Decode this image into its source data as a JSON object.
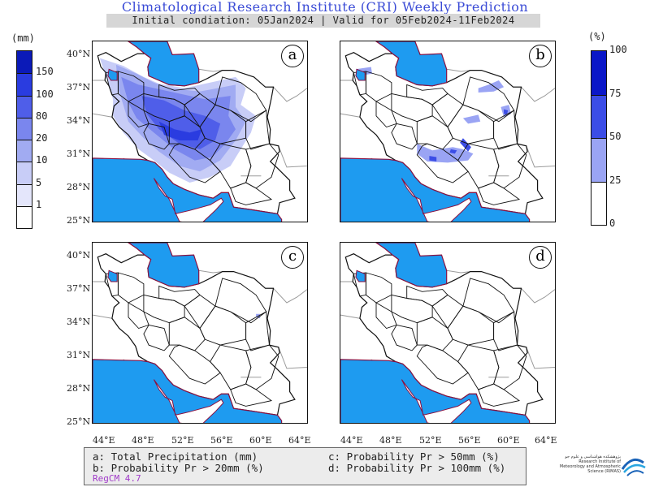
{
  "header": {
    "title": "Climatological Research Institute (CRI) Weekly Prediction",
    "subtitle": "Initial condiation: 05Jan2024 | Valid for 05Feb2024-11Feb2024"
  },
  "colorbar_left": {
    "unit": "(mm)",
    "labels": [
      "1",
      "5",
      "10",
      "20",
      "80",
      "100",
      "150"
    ],
    "colors": [
      "#ffffff",
      "#e4e6fb",
      "#c8cdf7",
      "#a1abf2",
      "#7a86ee",
      "#4f5ee9",
      "#2a3ce0",
      "#0b1ab8"
    ]
  },
  "colorbar_right": {
    "unit": "(%)",
    "labels": [
      "0",
      "25",
      "50",
      "75",
      "100"
    ],
    "colors": [
      "#ffffff",
      "#9aa4f4",
      "#3b4de6",
      "#0a17c8"
    ]
  },
  "panels": [
    {
      "id": "a",
      "label": "a"
    },
    {
      "id": "b",
      "label": "b"
    },
    {
      "id": "c",
      "label": "c"
    },
    {
      "id": "d",
      "label": "d"
    }
  ],
  "axes": {
    "lat_ticks": [
      "40°N",
      "37°N",
      "34°N",
      "31°N",
      "28°N",
      "25°N"
    ],
    "lon_ticks": [
      "44°E",
      "48°E",
      "52°E",
      "56°E",
      "60°E",
      "64°E"
    ]
  },
  "legend": {
    "a": "a: Total Precipitation (mm)",
    "b": "b: Probability Pr > 20mm (%)",
    "c": "c: Probability Pr > 50mm (%)",
    "d": "d: Probability Pr > 100mm (%)",
    "model": "RegCM 4.7"
  },
  "colors": {
    "sea": "#1e9bf0",
    "coast": "#8a1040",
    "title": "#3a4bd6"
  },
  "logo": {
    "text_fa": "پژوهشکده هواشناسی و علوم جو",
    "text_en": "Research Institute of Meteorology and Atmospheric Science (RIMAS)"
  }
}
